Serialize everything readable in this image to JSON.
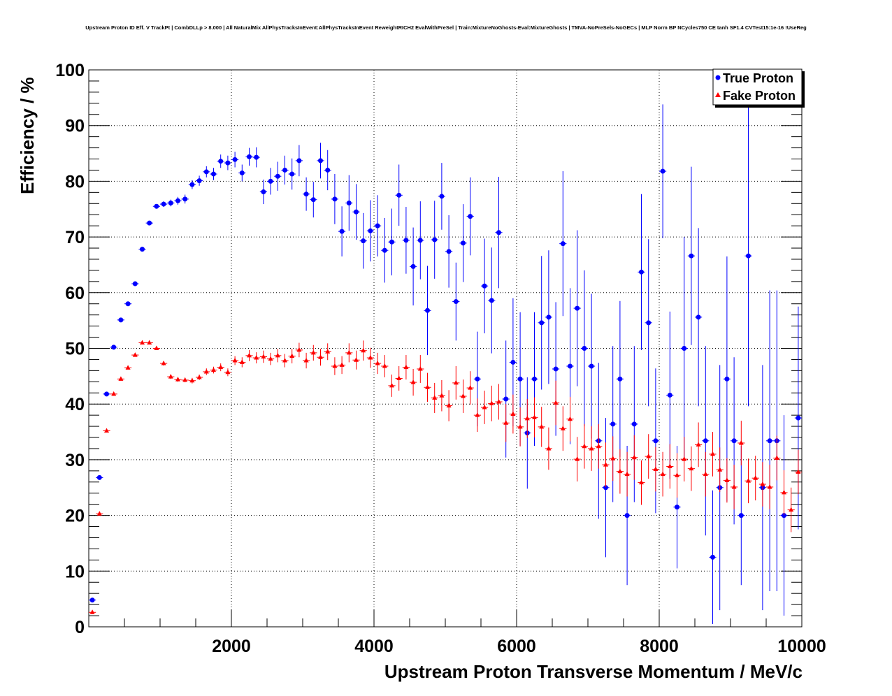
{
  "chart_data": {
    "type": "scatter",
    "title": "Upstream Proton ID Eff. V TrackPt | CombDLLp > 8.000 | All NaturalMix AllPhysTracksInEvent:AllPhysTracksInEvent ReweightRICH2 EvalWithPreSel | Train:MixtureNoGhosts-Eval:MixtureGhosts | TMVA-NoPreSels-NoGECs | MLP Norm BP NCycles750 CE tanh SF1.4 CVTest15:1e-16 !UseReg",
    "xlabel": "Upstream Proton Transverse Momentum / MeV/c",
    "ylabel": "Efficiency / %",
    "xlim": [
      0,
      10000
    ],
    "ylim": [
      0,
      100
    ],
    "xticks": [
      "2000",
      "4000",
      "6000",
      "8000",
      "10000"
    ],
    "xtick_values": [
      2000,
      4000,
      6000,
      8000,
      10000
    ],
    "yticks": [
      "0",
      "10",
      "20",
      "30",
      "40",
      "50",
      "60",
      "70",
      "80",
      "90",
      "100"
    ],
    "ytick_values": [
      0,
      10,
      20,
      30,
      40,
      50,
      60,
      70,
      80,
      90,
      100
    ],
    "grid": true,
    "legend_position": "top-right",
    "bin_width": 100,
    "series": [
      {
        "name": "True Proton",
        "color": "#0000ff",
        "marker": "circle",
        "values": [
          4.8,
          26.8,
          41.8,
          50.2,
          55.1,
          58,
          61.6,
          67.8,
          72.5,
          75.5,
          75.9,
          76.1,
          76.5,
          76.8,
          79.4,
          80.1,
          81.7,
          81.3,
          83.6,
          83.3,
          83.9,
          81.5,
          84.4,
          84.3,
          78.1,
          80,
          80.9,
          82,
          81.3,
          83.7,
          77.7,
          76.7,
          83.7,
          82,
          76.8,
          71,
          76.1,
          74.5,
          69.3,
          71.1,
          72,
          67.6,
          69.1,
          77.5,
          69.4,
          64.7,
          69.4,
          56.8,
          69.5,
          77.3,
          67.4,
          58.4,
          68.9,
          73.7,
          44.5,
          61.2,
          58.6,
          70.8,
          40.9,
          47.5,
          44.5,
          34.8,
          44.5,
          54.6,
          55.6,
          46.3,
          68.8,
          46.8,
          57.2,
          50,
          46.8,
          33.4,
          25,
          36.4,
          44.5,
          20,
          36.4,
          63.7,
          54.6,
          33.4,
          81.8,
          41.6,
          21.5,
          50,
          66.6,
          55.6,
          33.4,
          12.5,
          25,
          44.5,
          33.4,
          20,
          66.6,
          null,
          25,
          33.4,
          33.4,
          20,
          null,
          37.5
        ],
        "errors": [
          0.3,
          0.3,
          0.3,
          0.3,
          0.3,
          0.3,
          0.3,
          0.3,
          0.4,
          0.4,
          0.5,
          0.6,
          0.7,
          0.8,
          0.8,
          0.9,
          1.0,
          1.1,
          1.2,
          1.3,
          1.4,
          1.5,
          1.6,
          1.8,
          2.2,
          2.4,
          2.6,
          2.6,
          2.8,
          2.8,
          3,
          3.2,
          3.2,
          3.6,
          4.5,
          4.5,
          5,
          5,
          5,
          5.5,
          5.5,
          5.8,
          6,
          5.5,
          6,
          7,
          7,
          8,
          7,
          6,
          6.5,
          7,
          7,
          7,
          8.5,
          8.5,
          9.5,
          10,
          10.5,
          11.5,
          12,
          10,
          12,
          12,
          12,
          12,
          13,
          14,
          14,
          14,
          13,
          14,
          12.5,
          14,
          14,
          12.5,
          14,
          14,
          15,
          13,
          12,
          15,
          11,
          20,
          16,
          16,
          17,
          12,
          22,
          22,
          15,
          12.5,
          27,
          null,
          22,
          27,
          27,
          18,
          null,
          20
        ]
      },
      {
        "name": "Fake Proton",
        "color": "#ff0000",
        "marker": "triangle",
        "values": [
          2.6,
          20.3,
          35.2,
          41.8,
          44.5,
          46.5,
          48.8,
          51,
          51,
          50,
          47.3,
          44.9,
          44.4,
          44.3,
          44.2,
          44.8,
          45.8,
          46.1,
          46.6,
          45.7,
          47.8,
          47.5,
          48.7,
          48.3,
          48.5,
          48.1,
          48.7,
          47.8,
          48.6,
          49.7,
          47.8,
          49.2,
          48.4,
          49.4,
          46.8,
          47,
          49.2,
          47.9,
          49.6,
          48.3,
          47.3,
          46.8,
          43.3,
          44.6,
          46.6,
          43.9,
          46.3,
          43,
          41.1,
          41.5,
          39.7,
          43.8,
          41.4,
          42.9,
          38,
          39.4,
          40.1,
          40.4,
          36.6,
          38.2,
          35.9,
          37.4,
          37.6,
          35.9,
          32,
          40.2,
          35.6,
          37.3,
          30.1,
          32.4,
          32,
          32.4,
          29.1,
          30.2,
          27.9,
          27.4,
          30.4,
          25.9,
          30.6,
          28.3,
          27.4,
          28.8,
          27.2,
          30.1,
          28.4,
          32.7,
          27.4,
          31,
          28.2,
          26.3,
          25.1,
          33,
          26.2,
          26.7,
          25.6,
          25.1,
          30.3,
          24.1,
          21,
          27.8
        ],
        "errors": [
          0.3,
          0.3,
          0.3,
          0.3,
          0.3,
          0.3,
          0.3,
          0.3,
          0.3,
          0.3,
          0.4,
          0.4,
          0.4,
          0.4,
          0.5,
          0.5,
          0.6,
          0.6,
          0.7,
          0.7,
          0.8,
          0.9,
          1.0,
          1.0,
          1.1,
          1.1,
          1.2,
          1.2,
          1.3,
          1.3,
          1.4,
          1.4,
          1.5,
          1.5,
          1.6,
          1.6,
          1.7,
          1.7,
          1.8,
          1.8,
          1.9,
          2.0,
          2.0,
          2.2,
          2.2,
          2.4,
          2.5,
          2.6,
          2.7,
          2.8,
          2.8,
          3,
          3,
          3,
          3,
          3,
          3.2,
          3.2,
          3.4,
          3.5,
          3.5,
          3.5,
          3.6,
          3.6,
          3.8,
          4,
          4,
          4,
          4,
          4,
          4,
          4,
          4,
          4,
          4,
          4,
          4,
          4,
          4,
          4,
          4,
          4,
          4,
          4,
          4,
          4,
          4,
          4,
          4,
          4,
          4,
          4,
          4,
          4,
          4,
          4,
          4,
          4,
          4,
          4
        ]
      }
    ]
  }
}
